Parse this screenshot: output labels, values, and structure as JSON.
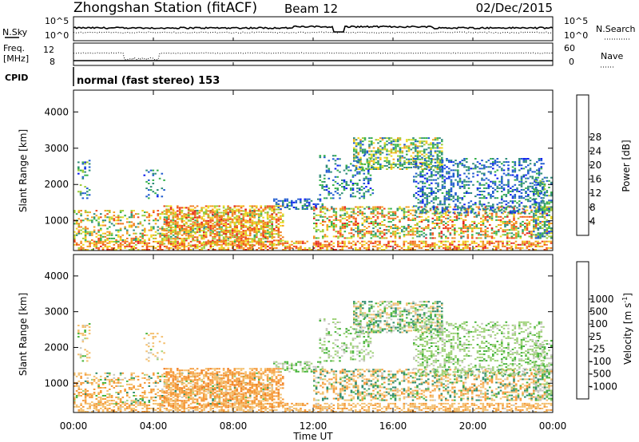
{
  "header": {
    "station_title": "Zhongshan Station (fitACF)",
    "beam": "Beam 12",
    "date": "02/Dec/2015"
  },
  "top_panels": {
    "nsky_label": "N.Sky",
    "nsky_ticks": [
      "10^5",
      "10^0"
    ],
    "nsearch_label": "N.Search",
    "nsearch_ticks": [
      "10^5",
      "10^0"
    ],
    "freq_label_1": "Freq.",
    "freq_label_2": "[MHz]",
    "freq_ticks": [
      "12",
      "8"
    ],
    "nave_label": "Nave",
    "nave_ticks": [
      "60",
      "0"
    ],
    "cpid_label": "CPID",
    "cpid_text": "normal (fast stereo) 153"
  },
  "chart_data": [
    {
      "type": "heatmap",
      "name": "power",
      "ylabel": "Slant Range [km]",
      "ylim": [
        180,
        4600
      ],
      "yticks": [
        "1000",
        "2000",
        "3000",
        "4000"
      ],
      "colorbar_label": "Power [dB]",
      "colorbar_levels": [
        "4",
        "8",
        "12",
        "16",
        "20",
        "24",
        "28"
      ],
      "colorbar_colors": [
        "#0a1cf0",
        "#1f5bd0",
        "#2f8c7a",
        "#35b14b",
        "#9ccd37",
        "#f0d81f",
        "#f4a020",
        "#f07a1f",
        "#ee4a1c",
        "#e21d1d"
      ]
    },
    {
      "type": "heatmap",
      "name": "velocity",
      "ylabel": "Slant Range [km]",
      "ylim": [
        180,
        4600
      ],
      "yticks": [
        "1000",
        "2000",
        "3000",
        "4000"
      ],
      "colorbar_label": "Velocity [m s",
      "colorbar_label_sup": "-1",
      "colorbar_label_end": "]",
      "colorbar_levels": [
        "1000",
        "500",
        "100",
        "25",
        "-25",
        "-100",
        "-500",
        "-1000"
      ],
      "colorbar_colors": [
        "#1f3fb0",
        "#2a72c8",
        "#2f8c6a",
        "#47b43a",
        "#9fd27a",
        "#c8c8c0",
        "#f4c070",
        "#f59a3a",
        "#f27a1f",
        "#e84818",
        "#e01c1c"
      ]
    }
  ],
  "xaxis": {
    "ticks": [
      "00:00",
      "04:00",
      "08:00",
      "12:00",
      "16:00",
      "20:00",
      "00:00"
    ],
    "label": "Time UT"
  }
}
